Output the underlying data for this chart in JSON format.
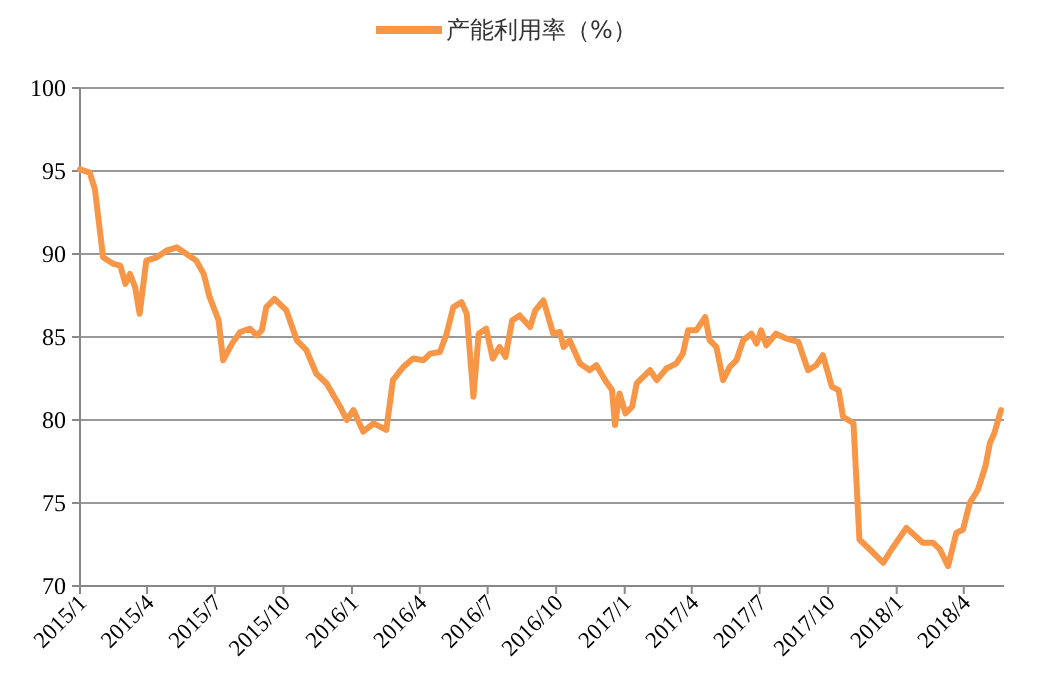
{
  "chart_data": {
    "type": "line",
    "legend": "top",
    "grid": "y",
    "xlim": [
      "2015-01-01",
      "2018-05-25"
    ],
    "xticks": [
      {
        "value": "2015-01-01",
        "label": "2015/1"
      },
      {
        "value": "2015-04-01",
        "label": "2015/4"
      },
      {
        "value": "2015-07-01",
        "label": "2015/7"
      },
      {
        "value": "2015-10-01",
        "label": "2015/10"
      },
      {
        "value": "2016-01-01",
        "label": "2016/1"
      },
      {
        "value": "2016-04-01",
        "label": "2016/4"
      },
      {
        "value": "2016-07-01",
        "label": "2016/7"
      },
      {
        "value": "2016-10-01",
        "label": "2016/10"
      },
      {
        "value": "2017-01-01",
        "label": "2017/1"
      },
      {
        "value": "2017-04-01",
        "label": "2017/4"
      },
      {
        "value": "2017-07-01",
        "label": "2017/7"
      },
      {
        "value": "2017-10-01",
        "label": "2017/10"
      },
      {
        "value": "2018-01-01",
        "label": "2018/1"
      },
      {
        "value": "2018-04-01",
        "label": "2018/4"
      }
    ],
    "ylim": [
      70,
      100
    ],
    "yticks": [
      70,
      75,
      80,
      85,
      90,
      95,
      100
    ],
    "x": [
      "2015-01-01",
      "2015-01-14",
      "2015-01-21",
      "2015-02-01",
      "2015-02-15",
      "2015-02-24",
      "2015-03-03",
      "2015-03-09",
      "2015-03-16",
      "2015-03-22",
      "2015-03-31",
      "2015-04-14",
      "2015-04-27",
      "2015-05-11",
      "2015-05-24",
      "2015-06-06",
      "2015-06-16",
      "2015-06-24",
      "2015-07-06",
      "2015-07-12",
      "2015-07-24",
      "2015-08-04",
      "2015-08-17",
      "2015-08-26",
      "2015-09-02",
      "2015-09-08",
      "2015-09-19",
      "2015-10-05",
      "2015-10-19",
      "2015-11-01",
      "2015-11-14",
      "2015-11-28",
      "2015-12-16",
      "2015-12-25",
      "2016-01-03",
      "2016-01-16",
      "2016-01-30",
      "2016-02-16",
      "2016-02-25",
      "2016-03-10",
      "2016-03-23",
      "2016-04-06",
      "2016-04-15",
      "2016-04-28",
      "2016-05-07",
      "2016-05-16",
      "2016-05-27",
      "2016-06-03",
      "2016-06-12",
      "2016-06-19",
      "2016-06-29",
      "2016-07-08",
      "2016-07-17",
      "2016-07-25",
      "2016-08-03",
      "2016-08-13",
      "2016-08-27",
      "2016-09-03",
      "2016-09-14",
      "2016-09-27",
      "2016-10-06",
      "2016-10-11",
      "2016-10-19",
      "2016-11-02",
      "2016-11-15",
      "2016-11-24",
      "2016-12-07",
      "2016-12-15",
      "2016-12-19",
      "2016-12-25",
      "2017-01-02",
      "2017-01-11",
      "2017-01-17",
      "2017-02-04",
      "2017-02-13",
      "2017-02-26",
      "2017-03-11",
      "2017-03-20",
      "2017-03-27",
      "2017-04-07",
      "2017-04-19",
      "2017-04-25",
      "2017-05-04",
      "2017-05-13",
      "2017-05-22",
      "2017-05-31",
      "2017-06-09",
      "2017-06-20",
      "2017-06-27",
      "2017-07-03",
      "2017-07-10",
      "2017-07-23",
      "2017-08-06",
      "2017-08-22",
      "2017-09-04",
      "2017-09-15",
      "2017-09-24",
      "2017-10-06",
      "2017-10-15",
      "2017-10-21",
      "2017-11-04",
      "2017-11-12",
      "2017-11-26",
      "2017-12-14",
      "2017-12-25",
      "2018-01-14",
      "2018-02-05",
      "2018-02-19",
      "2018-02-28",
      "2018-03-11",
      "2018-03-22",
      "2018-03-31",
      "2018-04-09",
      "2018-04-20",
      "2018-04-30",
      "2018-05-06",
      "2018-05-12",
      "2018-05-21"
    ],
    "series": [
      {
        "name": "产能利用率（%）",
        "color": "#f79646",
        "values": [
          95.1,
          94.9,
          93.9,
          89.8,
          89.4,
          89.3,
          88.2,
          88.8,
          88.0,
          86.4,
          89.6,
          89.8,
          90.2,
          90.4,
          90.0,
          89.6,
          88.8,
          87.4,
          86.0,
          83.6,
          84.6,
          85.3,
          85.5,
          85.1,
          85.4,
          86.8,
          87.3,
          86.6,
          84.8,
          84.2,
          82.8,
          82.2,
          80.8,
          80.0,
          80.6,
          79.3,
          79.8,
          79.4,
          82.4,
          83.2,
          83.7,
          83.6,
          84.0,
          84.1,
          85.2,
          86.8,
          87.1,
          86.4,
          81.4,
          85.2,
          85.5,
          83.7,
          84.4,
          83.8,
          86.0,
          86.3,
          85.6,
          86.6,
          87.2,
          85.2,
          85.3,
          84.4,
          84.8,
          83.4,
          83.0,
          83.3,
          82.3,
          81.8,
          79.7,
          81.6,
          80.4,
          80.8,
          82.2,
          83.0,
          82.4,
          83.1,
          83.4,
          84.0,
          85.4,
          85.4,
          86.2,
          84.8,
          84.4,
          82.4,
          83.2,
          83.6,
          84.8,
          85.2,
          84.6,
          85.4,
          84.5,
          85.2,
          84.9,
          84.7,
          83.0,
          83.3,
          83.9,
          82.0,
          81.8,
          80.2,
          79.8,
          72.8,
          72.2,
          71.4,
          72.2,
          73.5,
          72.6,
          72.6,
          72.2,
          71.2,
          73.2,
          73.4,
          75.0,
          75.8,
          77.2,
          78.6,
          79.2,
          80.6
        ]
      }
    ]
  }
}
